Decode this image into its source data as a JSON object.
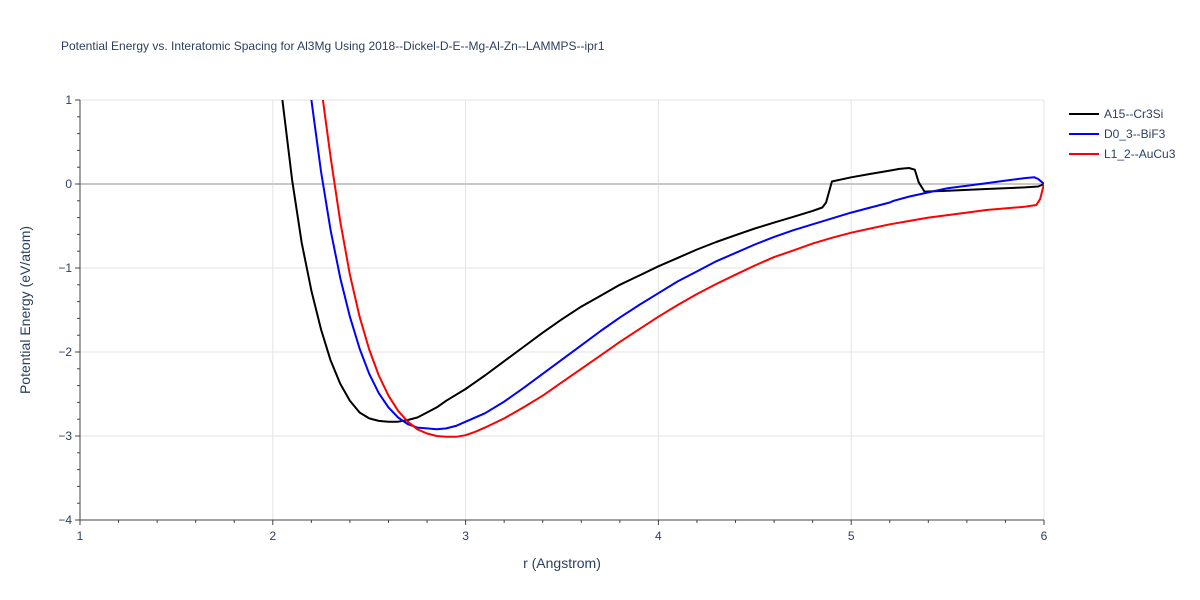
{
  "chart_data": {
    "type": "line",
    "title": "Potential Energy vs. Interatomic Spacing for Al3Mg Using 2018--Dickel-D-E--Mg-Al-Zn--LAMMPS--ipr1",
    "xlabel": "r (Angstrom)",
    "ylabel": "Potential Energy (eV/atom)",
    "xlim": [
      1,
      6
    ],
    "ylim": [
      -4,
      1
    ],
    "xticks": [
      "1",
      "2",
      "3",
      "4",
      "5",
      "6"
    ],
    "yticks": [
      "−4",
      "−3",
      "−2",
      "−1",
      "0",
      "1"
    ],
    "grid": true,
    "legend_position": "top-right",
    "series": [
      {
        "name": "A15--Cr3Si",
        "color": "#000000",
        "x": [
          2.05,
          2.1,
          2.15,
          2.2,
          2.25,
          2.3,
          2.35,
          2.4,
          2.45,
          2.5,
          2.55,
          2.6,
          2.65,
          2.7,
          2.75,
          2.8,
          2.85,
          2.9,
          3.0,
          3.1,
          3.2,
          3.3,
          3.4,
          3.5,
          3.6,
          3.7,
          3.8,
          3.9,
          4.0,
          4.1,
          4.2,
          4.3,
          4.4,
          4.5,
          4.6,
          4.7,
          4.8,
          4.85,
          4.87,
          4.9,
          5.0,
          5.1,
          5.2,
          5.25,
          5.3,
          5.33,
          5.35,
          5.38,
          5.5,
          5.7,
          5.9,
          5.97,
          6.0
        ],
        "y": [
          1.0,
          0.05,
          -0.7,
          -1.27,
          -1.73,
          -2.1,
          -2.38,
          -2.58,
          -2.72,
          -2.79,
          -2.82,
          -2.83,
          -2.83,
          -2.81,
          -2.78,
          -2.72,
          -2.66,
          -2.58,
          -2.44,
          -2.28,
          -2.11,
          -1.94,
          -1.77,
          -1.61,
          -1.46,
          -1.33,
          -1.2,
          -1.09,
          -0.98,
          -0.88,
          -0.78,
          -0.69,
          -0.61,
          -0.53,
          -0.46,
          -0.39,
          -0.32,
          -0.28,
          -0.22,
          0.03,
          0.08,
          0.12,
          0.16,
          0.18,
          0.19,
          0.17,
          0.02,
          -0.09,
          -0.08,
          -0.06,
          -0.04,
          -0.03,
          0.0
        ]
      },
      {
        "name": "D0_3--BiF3",
        "color": "#0000ff",
        "x": [
          2.2,
          2.25,
          2.3,
          2.35,
          2.4,
          2.45,
          2.5,
          2.55,
          2.6,
          2.65,
          2.7,
          2.75,
          2.8,
          2.85,
          2.9,
          2.95,
          3.0,
          3.1,
          3.2,
          3.3,
          3.4,
          3.5,
          3.6,
          3.7,
          3.8,
          3.9,
          4.0,
          4.1,
          4.2,
          4.3,
          4.4,
          4.5,
          4.6,
          4.7,
          4.8,
          4.9,
          5.0,
          5.1,
          5.2,
          5.22,
          5.3,
          5.4,
          5.5,
          5.6,
          5.7,
          5.8,
          5.9,
          5.95,
          5.97,
          6.0
        ],
        "y": [
          1.0,
          0.15,
          -0.55,
          -1.12,
          -1.58,
          -1.96,
          -2.26,
          -2.49,
          -2.66,
          -2.78,
          -2.86,
          -2.9,
          -2.91,
          -2.92,
          -2.91,
          -2.88,
          -2.83,
          -2.73,
          -2.59,
          -2.43,
          -2.26,
          -2.09,
          -1.92,
          -1.75,
          -1.59,
          -1.44,
          -1.3,
          -1.16,
          -1.04,
          -0.92,
          -0.82,
          -0.72,
          -0.63,
          -0.55,
          -0.48,
          -0.41,
          -0.34,
          -0.28,
          -0.22,
          -0.2,
          -0.15,
          -0.1,
          -0.05,
          -0.02,
          0.01,
          0.04,
          0.07,
          0.08,
          0.06,
          0.0
        ]
      },
      {
        "name": "L1_2--AuCu3",
        "color": "#ff0000",
        "x": [
          2.26,
          2.3,
          2.35,
          2.4,
          2.45,
          2.5,
          2.55,
          2.6,
          2.65,
          2.7,
          2.75,
          2.8,
          2.85,
          2.9,
          2.95,
          3.0,
          3.05,
          3.1,
          3.2,
          3.3,
          3.4,
          3.5,
          3.6,
          3.7,
          3.8,
          3.9,
          4.0,
          4.1,
          4.2,
          4.3,
          4.4,
          4.5,
          4.6,
          4.7,
          4.8,
          4.9,
          5.0,
          5.1,
          5.2,
          5.3,
          5.4,
          5.5,
          5.6,
          5.7,
          5.8,
          5.9,
          5.96,
          5.98,
          6.0
        ],
        "y": [
          1.0,
          0.32,
          -0.45,
          -1.08,
          -1.58,
          -1.97,
          -2.28,
          -2.52,
          -2.7,
          -2.83,
          -2.92,
          -2.97,
          -3.0,
          -3.01,
          -3.01,
          -2.99,
          -2.95,
          -2.9,
          -2.79,
          -2.66,
          -2.52,
          -2.36,
          -2.2,
          -2.04,
          -1.88,
          -1.73,
          -1.58,
          -1.44,
          -1.31,
          -1.19,
          -1.08,
          -0.97,
          -0.87,
          -0.79,
          -0.71,
          -0.64,
          -0.58,
          -0.53,
          -0.48,
          -0.44,
          -0.4,
          -0.37,
          -0.34,
          -0.31,
          -0.29,
          -0.27,
          -0.25,
          -0.18,
          0.0
        ]
      }
    ]
  }
}
